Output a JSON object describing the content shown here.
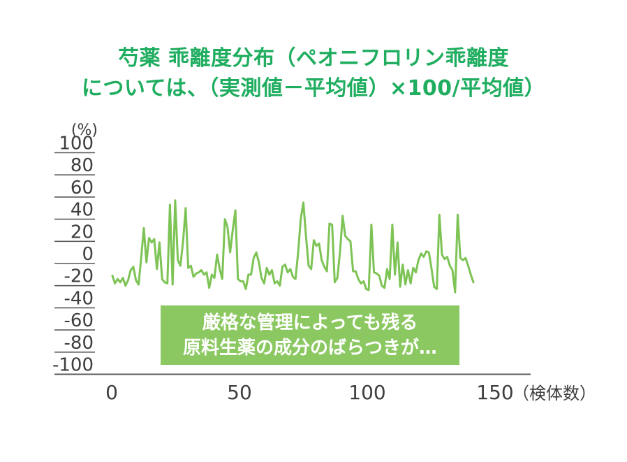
{
  "title": {
    "line1": "芍薬 乖離度分布（ペオニフロリン乖離度",
    "line2": "については、（実測値－平均値）×100/平均値）"
  },
  "annotation": {
    "line1": "厳格な管理によっても残る",
    "line2": "原料生薬の成分のばらつきが…"
  },
  "colors": {
    "title_green": "#1fad5f",
    "line_green": "#7dc355",
    "box_green": "#8cc862",
    "axis_text": "#3e3e3e",
    "axis_line": "#595959"
  },
  "chart_data": {
    "type": "line",
    "title": "芍薬 乖離度分布（ペオニフロリン乖離度については、（実測値－平均値）×100/平均値）",
    "ylabel_unit": "(%)",
    "xlabel_unit": "（検体数）",
    "xlabel": "検体数",
    "ylabel": "%",
    "ylim": [
      -100,
      100
    ],
    "xlim": [
      0,
      150
    ],
    "y_ticks": [
      100,
      80,
      60,
      40,
      20,
      0,
      -20,
      -40,
      -60,
      -80,
      -100
    ],
    "x_ticks": [
      0,
      50,
      100,
      150
    ],
    "grid": false,
    "legend": "none",
    "x_start": 1,
    "values": [
      -11,
      -18,
      -14,
      -17,
      -13,
      -20,
      -15,
      -6,
      -3,
      -15,
      -19,
      5,
      32,
      1,
      23,
      19,
      22,
      -5,
      19,
      -14,
      -17,
      -18,
      53,
      -19,
      57,
      3,
      -2,
      20,
      50,
      -4,
      -2,
      -12,
      -9,
      -8,
      -6,
      -10,
      -8,
      -22,
      -10,
      -13,
      8,
      -5,
      -14,
      40,
      33,
      10,
      30,
      48,
      -14,
      -16,
      -16,
      -23,
      -10,
      -10,
      5,
      10,
      1,
      -13,
      -18,
      -4,
      -10,
      -6,
      -18,
      -16,
      -20,
      -3,
      -1,
      -8,
      -5,
      -12,
      -14,
      10,
      40,
      55,
      25,
      -2,
      -5,
      21,
      16,
      18,
      3,
      -3,
      -7,
      36,
      35,
      -17,
      -13,
      10,
      43,
      25,
      22,
      20,
      -7,
      -7,
      -14,
      -18,
      -16,
      -23,
      -24,
      35,
      -8,
      -9,
      -11,
      -20,
      -22,
      -5,
      -14,
      35,
      -10,
      19,
      -21,
      -1,
      -19,
      -6,
      -18,
      -4,
      -8,
      3,
      9,
      6,
      11,
      10,
      -5,
      -21,
      -23,
      44,
      8,
      4,
      6,
      -2,
      -6,
      -26,
      44,
      5,
      3,
      5,
      -2,
      -10,
      -17
    ]
  }
}
